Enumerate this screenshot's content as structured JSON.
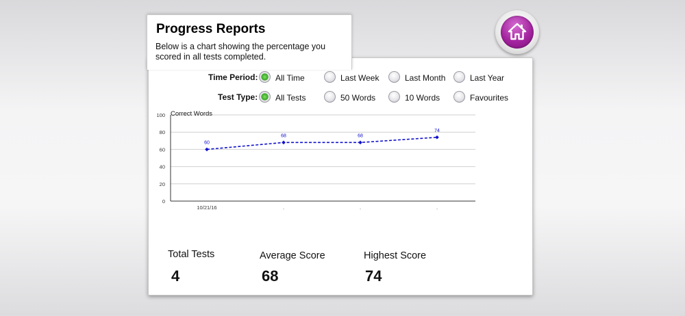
{
  "header": {
    "title": "Progress Reports",
    "description": "Below is a chart showing the percentage you scored in all tests completed."
  },
  "home_button": {
    "icon": "home-icon",
    "color": "#a4249f"
  },
  "filters": {
    "time_period": {
      "label": "Time Period:",
      "options": [
        "All Time",
        "Last Week",
        "Last Month",
        "Last Year"
      ],
      "selected": "All Time"
    },
    "test_type": {
      "label": "Test Type:",
      "options": [
        "All Tests",
        "50 Words",
        "10 Words",
        "Favourites"
      ],
      "selected": "All Tests"
    }
  },
  "chart_data": {
    "type": "line",
    "ylabel": "Correct Words",
    "x": [
      "10/21/16",
      ".",
      ".",
      "."
    ],
    "series": [
      {
        "values": [
          60,
          68,
          68,
          74
        ],
        "color": "#1010cc"
      }
    ],
    "data_labels": [
      "60",
      "68",
      "68",
      "74"
    ],
    "yticks": [
      "0",
      "20",
      "40",
      "60",
      "80",
      "100"
    ],
    "ylim": [
      0,
      100
    ],
    "grid": true
  },
  "stats": {
    "total_tests": {
      "label": "Total Tests",
      "value": "4"
    },
    "average_score": {
      "label": "Average Score",
      "value": "68"
    },
    "highest_score": {
      "label": "Highest Score",
      "value": "74"
    }
  }
}
